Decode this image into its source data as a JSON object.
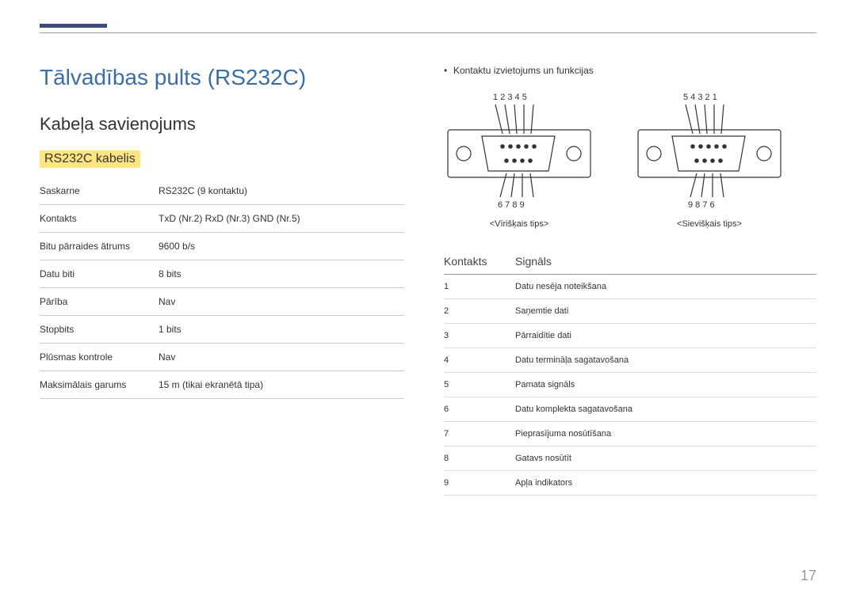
{
  "page_number": "17",
  "main_title": "Tālvadības pults (RS232C)",
  "sub_title": "Kabeļa savienojums",
  "section_title": "RS232C kabelis",
  "spec_table": [
    {
      "label": "Saskarne",
      "value": "RS232C (9 kontaktu)"
    },
    {
      "label": "Kontakts",
      "value": "TxD (Nr.2) RxD (Nr.3) GND (Nr.5)"
    },
    {
      "label": "Bitu pārraides ātrums",
      "value": "9600 b/s"
    },
    {
      "label": "Datu biti",
      "value": "8 bits"
    },
    {
      "label": "Pārība",
      "value": "Nav"
    },
    {
      "label": "Stopbits",
      "value": "1 bits"
    },
    {
      "label": "Plūsmas kontrole",
      "value": "Nav"
    },
    {
      "label": "Maksimālais garums",
      "value": "15 m (tikai ekranētā tipa)"
    }
  ],
  "bullet_text": "Kontaktu izvietojums un funkcijas",
  "diagram_male": {
    "top_labels": "1  2  3  4  5",
    "bottom_labels": "6  7  8  9",
    "caption": "<Vīrišķais tips>"
  },
  "diagram_female": {
    "top_labels": "5  4  3  2  1",
    "bottom_labels": "9  8  7  6",
    "caption": "<Sievišķais tips>"
  },
  "signal_header": {
    "col1": "Kontakts",
    "col2": "Signāls"
  },
  "signal_rows": [
    {
      "pin": "1",
      "signal": "Datu nesēja noteikšana"
    },
    {
      "pin": "2",
      "signal": "Saņemtie dati"
    },
    {
      "pin": "3",
      "signal": "Pārraidītie dati"
    },
    {
      "pin": "4",
      "signal": "Datu termināļa sagatavošana"
    },
    {
      "pin": "5",
      "signal": "Pamata signāls"
    },
    {
      "pin": "6",
      "signal": "Datu komplekta sagatavošana"
    },
    {
      "pin": "7",
      "signal": "Pieprasījuma nosūtīšana"
    },
    {
      "pin": "8",
      "signal": "Gatavs nosūtīt"
    },
    {
      "pin": "9",
      "signal": "Apļa indikators"
    }
  ],
  "colors": {
    "accent": "#3a6ea5",
    "bar": "#3a4a7a",
    "highlight": "#ffe680",
    "divider": "#cccccc",
    "text": "#333333"
  }
}
